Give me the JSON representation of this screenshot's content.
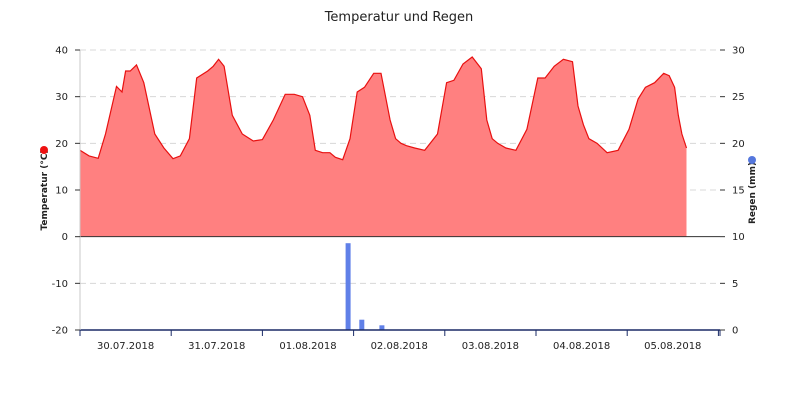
{
  "chart_data": {
    "type": "area",
    "title": "Temperatur und Regen",
    "x_axis": {
      "ticks": [
        "30.07.2018",
        "31.07.2018",
        "01.08.2018",
        "02.08.2018",
        "03.08.2018",
        "04.08.2018",
        "05.08.2018"
      ]
    },
    "y_axis_left": {
      "label": "Temperatur (°C)",
      "range": [
        -20,
        40
      ],
      "ticks": [
        "40",
        "30",
        "20",
        "10",
        "0",
        "-10",
        "-20"
      ]
    },
    "y_axis_right": {
      "label": "Regen (mm)",
      "range": [
        0,
        30
      ],
      "ticks": [
        "30",
        "25",
        "20",
        "15",
        "10",
        "5",
        "0"
      ]
    },
    "grid": "horizontal dashed",
    "legend": "markers beside axis titles",
    "series": [
      {
        "type": "area",
        "axis": "left",
        "color": "#ff8080",
        "line_color": "#e81010",
        "marker_color": "#ee1111",
        "x_days": [
          0,
          0.1,
          0.2,
          0.28,
          0.4,
          0.46,
          0.5,
          0.55,
          0.62,
          0.7,
          0.82,
          0.92,
          1.02,
          1.1,
          1.2,
          1.28,
          1.4,
          1.46,
          1.52,
          1.58,
          1.67,
          1.78,
          1.9,
          2.0,
          2.12,
          2.25,
          2.35,
          2.44,
          2.52,
          2.58,
          2.66,
          2.74,
          2.8,
          2.88,
          2.96,
          3.04,
          3.12,
          3.22,
          3.3,
          3.4,
          3.46,
          3.52,
          3.58,
          3.67,
          3.78,
          3.92,
          4.02,
          4.1,
          4.2,
          4.3,
          4.4,
          4.46,
          4.52,
          4.58,
          4.67,
          4.78,
          4.9,
          5.02,
          5.1,
          5.2,
          5.3,
          5.4,
          5.46,
          5.52,
          5.58,
          5.67,
          5.78,
          5.9,
          6.02,
          6.12,
          6.2,
          6.3,
          6.4,
          6.46,
          6.52,
          6.56,
          6.6,
          6.65
        ],
        "values": [
          18.5,
          17.3,
          16.8,
          22,
          32.2,
          31,
          35.5,
          35.5,
          36.8,
          33,
          22,
          19,
          16.7,
          17.3,
          21,
          34,
          35.5,
          36.5,
          38,
          36.5,
          26,
          22,
          20.5,
          20.8,
          25,
          30.5,
          30.5,
          30,
          26,
          18.5,
          18,
          18,
          17,
          16.5,
          21,
          31,
          32,
          35,
          35,
          25,
          21,
          20,
          19.5,
          19,
          18.5,
          22,
          33,
          33.5,
          37,
          38.5,
          36,
          25,
          21,
          20,
          19,
          18.5,
          23,
          34,
          34,
          36.5,
          38,
          37.5,
          28,
          24,
          21,
          20,
          18,
          18.5,
          23,
          29.5,
          32,
          33,
          35,
          34.5,
          32,
          26,
          22,
          19
        ]
      },
      {
        "type": "bar",
        "axis": "right",
        "color": "#6080e8",
        "marker_color": "#5577dd",
        "x_days": [
          2.94,
          3.09,
          3.31
        ],
        "values": [
          9.3,
          1.1,
          0.5
        ]
      }
    ]
  }
}
